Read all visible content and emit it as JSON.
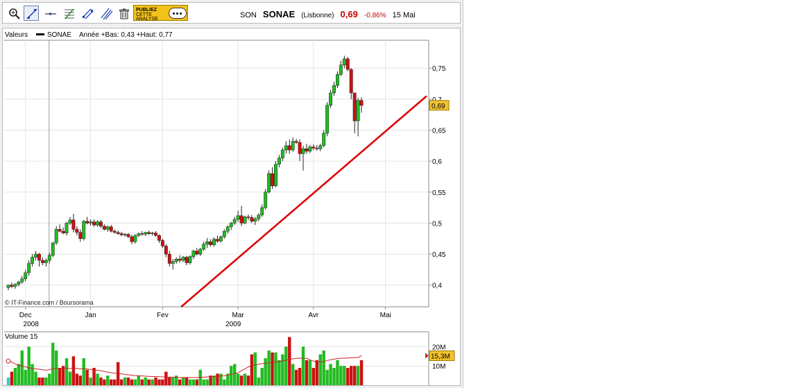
{
  "toolbar": {
    "tools": [
      {
        "name": "zoom-icon"
      },
      {
        "name": "trendline-icon",
        "active": true
      },
      {
        "name": "horizontal-line-icon"
      },
      {
        "name": "fibonacci-icon"
      },
      {
        "name": "channel-icon"
      },
      {
        "name": "parallel-lines-icon"
      },
      {
        "name": "trash-icon"
      }
    ],
    "ad": {
      "line1": "PUBLIEZ",
      "line2": "CETTE",
      "line3": "ANALYSE"
    }
  },
  "quote": {
    "ticker": "SON",
    "name": "SONAE",
    "market": "(Lisbonne)",
    "price": "0,69",
    "change": "-0,86%",
    "date": "15 Mai"
  },
  "colors": {
    "up": "#22bb22",
    "down": "#cc1111",
    "trendline": "#dd0000",
    "ma": "#cc2222",
    "price_tag": "#f2c230"
  },
  "chart_data": [
    {
      "type": "candlestick",
      "legend": {
        "label": "Valeurs",
        "series": "SONAE",
        "info": "Année +Bas: 0,43 +Haut: 0,77"
      },
      "ylim": [
        0.365,
        0.795
      ],
      "yticks": [
        {
          "v": 0.75,
          "label": "0,75"
        },
        {
          "v": 0.7,
          "label": "0,7"
        },
        {
          "v": 0.65,
          "label": "0,65"
        },
        {
          "v": 0.6,
          "label": "0,6"
        },
        {
          "v": 0.55,
          "label": "0,55"
        },
        {
          "v": 0.5,
          "label": "0,5"
        },
        {
          "v": 0.45,
          "label": "0,45"
        },
        {
          "v": 0.4,
          "label": "0,4"
        }
      ],
      "xlim": [
        0,
        122
      ],
      "xticks": [
        {
          "i": 5,
          "label": "Dec"
        },
        {
          "i": 24,
          "label": "Jan"
        },
        {
          "i": 45,
          "label": "Fev"
        },
        {
          "i": 67,
          "label": "Mar"
        },
        {
          "i": 89,
          "label": "Avr"
        },
        {
          "i": 110,
          "label": "Mai"
        }
      ],
      "years": [
        {
          "i": 6,
          "label": "2008"
        },
        {
          "i": 65,
          "label": "2009"
        }
      ],
      "separators": [
        12
      ],
      "last_price": {
        "value": 0.69,
        "label": "0,69"
      },
      "trendline": {
        "from": [
          50,
          0.363
        ],
        "to": [
          122,
          0.705
        ]
      },
      "source": "© IT-Finance.com / Boursorama",
      "candles": [
        [
          0.396,
          0.401,
          0.392,
          0.4
        ],
        [
          0.4,
          0.404,
          0.395,
          0.398
        ],
        [
          0.398,
          0.403,
          0.394,
          0.401
        ],
        [
          0.401,
          0.407,
          0.398,
          0.405
        ],
        [
          0.405,
          0.415,
          0.402,
          0.41
        ],
        [
          0.41,
          0.425,
          0.406,
          0.42
        ],
        [
          0.42,
          0.44,
          0.415,
          0.435
        ],
        [
          0.435,
          0.45,
          0.43,
          0.445
        ],
        [
          0.445,
          0.455,
          0.44,
          0.45
        ],
        [
          0.45,
          0.452,
          0.43,
          0.44
        ],
        [
          0.44,
          0.445,
          0.432,
          0.436
        ],
        [
          0.436,
          0.443,
          0.43,
          0.44
        ],
        [
          0.44,
          0.452,
          0.435,
          0.448
        ],
        [
          0.448,
          0.47,
          0.445,
          0.468
        ],
        [
          0.468,
          0.495,
          0.465,
          0.49
        ],
        [
          0.49,
          0.498,
          0.485,
          0.487
        ],
        [
          0.487,
          0.493,
          0.482,
          0.484
        ],
        [
          0.484,
          0.502,
          0.48,
          0.5
        ],
        [
          0.5,
          0.51,
          0.497,
          0.505
        ],
        [
          0.505,
          0.515,
          0.485,
          0.49
        ],
        [
          0.49,
          0.495,
          0.48,
          0.485
        ],
        [
          0.485,
          0.49,
          0.47,
          0.475
        ],
        [
          0.475,
          0.505,
          0.472,
          0.503
        ],
        [
          0.503,
          0.51,
          0.498,
          0.5
        ],
        [
          0.5,
          0.506,
          0.496,
          0.502
        ],
        [
          0.502,
          0.506,
          0.494,
          0.497
        ],
        [
          0.497,
          0.505,
          0.494,
          0.502
        ],
        [
          0.502,
          0.505,
          0.492,
          0.495
        ],
        [
          0.495,
          0.498,
          0.488,
          0.49
        ],
        [
          0.49,
          0.496,
          0.486,
          0.494
        ],
        [
          0.494,
          0.497,
          0.485,
          0.487
        ],
        [
          0.487,
          0.49,
          0.483,
          0.485
        ],
        [
          0.485,
          0.488,
          0.481,
          0.483
        ],
        [
          0.483,
          0.486,
          0.479,
          0.481
        ],
        [
          0.481,
          0.484,
          0.478,
          0.482
        ],
        [
          0.482,
          0.484,
          0.476,
          0.478
        ],
        [
          0.478,
          0.481,
          0.466,
          0.47
        ],
        [
          0.47,
          0.482,
          0.467,
          0.48
        ],
        [
          0.48,
          0.485,
          0.478,
          0.483
        ],
        [
          0.483,
          0.487,
          0.48,
          0.482
        ],
        [
          0.482,
          0.486,
          0.479,
          0.485
        ],
        [
          0.485,
          0.488,
          0.481,
          0.483
        ],
        [
          0.483,
          0.486,
          0.48,
          0.484
        ],
        [
          0.484,
          0.487,
          0.478,
          0.48
        ],
        [
          0.48,
          0.482,
          0.468,
          0.472
        ],
        [
          0.472,
          0.475,
          0.46,
          0.463
        ],
        [
          0.463,
          0.466,
          0.445,
          0.45
        ],
        [
          0.45,
          0.455,
          0.43,
          0.435
        ],
        [
          0.435,
          0.442,
          0.425,
          0.438
        ],
        [
          0.438,
          0.445,
          0.434,
          0.442
        ],
        [
          0.442,
          0.448,
          0.436,
          0.44
        ],
        [
          0.44,
          0.447,
          0.437,
          0.445
        ],
        [
          0.445,
          0.447,
          0.432,
          0.436
        ],
        [
          0.436,
          0.448,
          0.433,
          0.446
        ],
        [
          0.446,
          0.457,
          0.442,
          0.455
        ],
        [
          0.455,
          0.46,
          0.448,
          0.45
        ],
        [
          0.45,
          0.46,
          0.447,
          0.458
        ],
        [
          0.458,
          0.47,
          0.455,
          0.466
        ],
        [
          0.466,
          0.476,
          0.46,
          0.47
        ],
        [
          0.47,
          0.474,
          0.462,
          0.465
        ],
        [
          0.465,
          0.477,
          0.462,
          0.474
        ],
        [
          0.474,
          0.48,
          0.468,
          0.471
        ],
        [
          0.471,
          0.48,
          0.469,
          0.478
        ],
        [
          0.478,
          0.49,
          0.475,
          0.487
        ],
        [
          0.487,
          0.496,
          0.483,
          0.494
        ],
        [
          0.494,
          0.502,
          0.489,
          0.5
        ],
        [
          0.5,
          0.51,
          0.497,
          0.506
        ],
        [
          0.506,
          0.52,
          0.502,
          0.512
        ],
        [
          0.512,
          0.528,
          0.495,
          0.5
        ],
        [
          0.5,
          0.512,
          0.498,
          0.51
        ],
        [
          0.51,
          0.514,
          0.505,
          0.509
        ],
        [
          0.509,
          0.513,
          0.5,
          0.503
        ],
        [
          0.503,
          0.51,
          0.497,
          0.507
        ],
        [
          0.507,
          0.516,
          0.503,
          0.513
        ],
        [
          0.513,
          0.53,
          0.51,
          0.525
        ],
        [
          0.525,
          0.555,
          0.522,
          0.55
        ],
        [
          0.55,
          0.585,
          0.548,
          0.58
        ],
        [
          0.58,
          0.59,
          0.555,
          0.56
        ],
        [
          0.56,
          0.6,
          0.558,
          0.595
        ],
        [
          0.595,
          0.61,
          0.59,
          0.605
        ],
        [
          0.605,
          0.622,
          0.6,
          0.618
        ],
        [
          0.618,
          0.632,
          0.612,
          0.625
        ],
        [
          0.625,
          0.635,
          0.612,
          0.618
        ],
        [
          0.618,
          0.638,
          0.615,
          0.632
        ],
        [
          0.632,
          0.636,
          0.628,
          0.63
        ],
        [
          0.63,
          0.635,
          0.6,
          0.612
        ],
        [
          0.612,
          0.625,
          0.585,
          0.62
        ],
        [
          0.62,
          0.628,
          0.612,
          0.616
        ],
        [
          0.616,
          0.626,
          0.613,
          0.623
        ],
        [
          0.623,
          0.627,
          0.618,
          0.621
        ],
        [
          0.621,
          0.626,
          0.617,
          0.62
        ],
        [
          0.62,
          0.628,
          0.616,
          0.625
        ],
        [
          0.625,
          0.65,
          0.622,
          0.645
        ],
        [
          0.645,
          0.695,
          0.64,
          0.69
        ],
        [
          0.69,
          0.715,
          0.686,
          0.71
        ],
        [
          0.71,
          0.728,
          0.705,
          0.722
        ],
        [
          0.722,
          0.745,
          0.718,
          0.74
        ],
        [
          0.74,
          0.762,
          0.737,
          0.755
        ],
        [
          0.755,
          0.77,
          0.75,
          0.765
        ],
        [
          0.765,
          0.768,
          0.745,
          0.748
        ],
        [
          0.748,
          0.75,
          0.7,
          0.71
        ],
        [
          0.71,
          0.71,
          0.645,
          0.665
        ],
        [
          0.665,
          0.702,
          0.64,
          0.698
        ],
        [
          0.698,
          0.703,
          0.678,
          0.69
        ]
      ]
    },
    {
      "type": "bar",
      "title": "Volume 15",
      "yticks": [
        {
          "v": 20,
          "label": "20M"
        },
        {
          "v": 10,
          "label": "10M"
        }
      ],
      "ylim": [
        0,
        27
      ],
      "last_value": {
        "value": 15.3,
        "label": "15,3M"
      },
      "volumes": [
        4,
        7,
        9,
        11,
        18,
        8,
        20,
        11,
        7,
        4,
        4,
        4,
        6,
        22,
        18,
        9,
        10,
        14,
        7,
        15,
        6,
        5,
        14,
        8,
        4,
        9,
        6,
        4,
        3,
        5,
        3,
        3,
        12,
        3,
        4,
        4,
        3,
        3,
        5,
        3,
        4,
        3,
        3,
        4,
        3,
        3,
        7,
        4,
        4,
        5,
        3,
        4,
        4,
        3,
        3,
        3,
        8,
        3,
        3,
        5,
        5,
        6,
        6,
        3,
        6,
        10,
        11,
        6,
        5,
        6,
        5,
        16,
        17,
        4,
        9,
        14,
        18,
        17,
        17,
        13,
        16,
        20,
        25,
        11,
        8,
        9,
        20,
        13,
        13,
        9,
        13,
        16,
        18,
        8,
        11,
        9,
        13,
        10,
        10,
        9,
        10,
        10,
        10,
        13
      ],
      "ma": [
        12.5,
        12,
        11,
        10.5,
        10,
        9.5,
        9,
        8.7,
        8.5,
        8.3,
        8,
        7.8,
        8,
        8.5,
        8.7,
        8.8,
        8.7,
        8.8,
        8.7,
        8.8,
        8.7,
        8.5,
        8.5,
        8.4,
        8.2,
        8,
        7.8,
        7.5,
        7.2,
        6.8,
        6.5,
        6.2,
        6.1,
        5.9,
        5.6,
        5.4,
        5.2,
        5,
        4.9,
        4.8,
        4.7,
        4.6,
        4.5,
        4.5,
        4.4,
        4.3,
        4.3,
        4.2,
        4.2,
        4.1,
        4,
        4,
        4,
        4,
        4,
        4,
        4.1,
        4.2,
        4.3,
        4.4,
        4.5,
        4.6,
        4.8,
        4.9,
        5.2,
        5.6,
        6,
        6.5,
        7.5,
        8.5,
        9.5,
        10.2,
        10.6,
        10.9,
        11.2,
        11.4,
        11.6,
        11.9,
        12.1,
        12.3,
        12.6,
        13,
        13.4,
        13.7,
        13.9,
        14,
        14.1,
        13.9,
        13.2,
        12.5,
        12.1,
        12,
        12.3,
        12.8,
        13.2,
        13.5,
        13.8,
        14,
        14.1,
        14.1,
        14.2,
        14.3,
        14.4,
        15.3
      ]
    }
  ]
}
